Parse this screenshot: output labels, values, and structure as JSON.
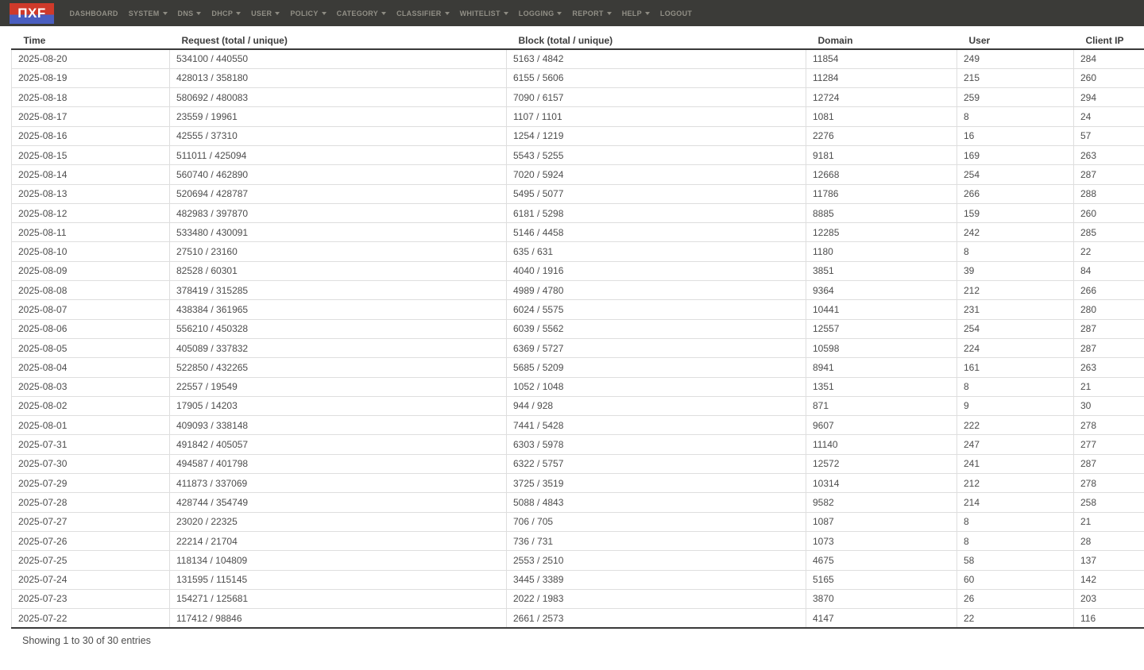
{
  "navbar": {
    "logo_text": "ΠXF",
    "items": [
      {
        "label": "DASHBOARD",
        "caret": false
      },
      {
        "label": "SYSTEM",
        "caret": true
      },
      {
        "label": "DNS",
        "caret": true
      },
      {
        "label": "DHCP",
        "caret": true
      },
      {
        "label": "USER",
        "caret": true
      },
      {
        "label": "POLICY",
        "caret": true
      },
      {
        "label": "CATEGORY",
        "caret": true
      },
      {
        "label": "CLASSIFIER",
        "caret": true
      },
      {
        "label": "WHITELIST",
        "caret": true
      },
      {
        "label": "LOGGING",
        "caret": true
      },
      {
        "label": "REPORT",
        "caret": true
      },
      {
        "label": "HELP",
        "caret": true
      },
      {
        "label": "LOGOUT",
        "caret": false
      }
    ]
  },
  "table": {
    "columns": [
      "Time",
      "Request (total / unique)",
      "Block (total / unique)",
      "Domain",
      "User",
      "Client IP"
    ],
    "rows": [
      [
        "2025-08-20",
        "534100 / 440550",
        "5163 / 4842",
        "11854",
        "249",
        "284"
      ],
      [
        "2025-08-19",
        "428013 / 358180",
        "6155 / 5606",
        "11284",
        "215",
        "260"
      ],
      [
        "2025-08-18",
        "580692 / 480083",
        "7090 / 6157",
        "12724",
        "259",
        "294"
      ],
      [
        "2025-08-17",
        "23559 / 19961",
        "1107 / 1101",
        "1081",
        "8",
        "24"
      ],
      [
        "2025-08-16",
        "42555 / 37310",
        "1254 / 1219",
        "2276",
        "16",
        "57"
      ],
      [
        "2025-08-15",
        "511011 / 425094",
        "5543 / 5255",
        "9181",
        "169",
        "263"
      ],
      [
        "2025-08-14",
        "560740 / 462890",
        "7020 / 5924",
        "12668",
        "254",
        "287"
      ],
      [
        "2025-08-13",
        "520694 / 428787",
        "5495 / 5077",
        "11786",
        "266",
        "288"
      ],
      [
        "2025-08-12",
        "482983 / 397870",
        "6181 / 5298",
        "8885",
        "159",
        "260"
      ],
      [
        "2025-08-11",
        "533480 / 430091",
        "5146 / 4458",
        "12285",
        "242",
        "285"
      ],
      [
        "2025-08-10",
        "27510 / 23160",
        "635 / 631",
        "1180",
        "8",
        "22"
      ],
      [
        "2025-08-09",
        "82528 / 60301",
        "4040 / 1916",
        "3851",
        "39",
        "84"
      ],
      [
        "2025-08-08",
        "378419 / 315285",
        "4989 / 4780",
        "9364",
        "212",
        "266"
      ],
      [
        "2025-08-07",
        "438384 / 361965",
        "6024 / 5575",
        "10441",
        "231",
        "280"
      ],
      [
        "2025-08-06",
        "556210 / 450328",
        "6039 / 5562",
        "12557",
        "254",
        "287"
      ],
      [
        "2025-08-05",
        "405089 / 337832",
        "6369 / 5727",
        "10598",
        "224",
        "287"
      ],
      [
        "2025-08-04",
        "522850 / 432265",
        "5685 / 5209",
        "8941",
        "161",
        "263"
      ],
      [
        "2025-08-03",
        "22557 / 19549",
        "1052 / 1048",
        "1351",
        "8",
        "21"
      ],
      [
        "2025-08-02",
        "17905 / 14203",
        "944 / 928",
        "871",
        "9",
        "30"
      ],
      [
        "2025-08-01",
        "409093 / 338148",
        "7441 / 5428",
        "9607",
        "222",
        "278"
      ],
      [
        "2025-07-31",
        "491842 / 405057",
        "6303 / 5978",
        "11140",
        "247",
        "277"
      ],
      [
        "2025-07-30",
        "494587 / 401798",
        "6322 / 5757",
        "12572",
        "241",
        "287"
      ],
      [
        "2025-07-29",
        "411873 / 337069",
        "3725 / 3519",
        "10314",
        "212",
        "278"
      ],
      [
        "2025-07-28",
        "428744 / 354749",
        "5088 / 4843",
        "9582",
        "214",
        "258"
      ],
      [
        "2025-07-27",
        "23020 / 22325",
        "706 / 705",
        "1087",
        "8",
        "21"
      ],
      [
        "2025-07-26",
        "22214 / 21704",
        "736 / 731",
        "1073",
        "8",
        "28"
      ],
      [
        "2025-07-25",
        "118134 / 104809",
        "2553 / 2510",
        "4675",
        "58",
        "137"
      ],
      [
        "2025-07-24",
        "131595 / 115145",
        "3445 / 3389",
        "5165",
        "60",
        "142"
      ],
      [
        "2025-07-23",
        "154271 / 125681",
        "2022 / 1983",
        "3870",
        "26",
        "203"
      ],
      [
        "2025-07-22",
        "117412 / 98846",
        "2661 / 2573",
        "4147",
        "22",
        "116"
      ]
    ]
  },
  "footer": {
    "showing_text": "Showing 1 to 30 of 30 entries"
  },
  "colors": {
    "navbar_bg": "#3b3b38",
    "nav_text": "#918f86",
    "logo_red": "#cf3a2a",
    "logo_blue": "#4a5ec0",
    "header_text": "#3d3d3d",
    "cell_text": "#4d4d4d",
    "row_border": "#dedede",
    "dark_border": "#3a3a3a"
  }
}
